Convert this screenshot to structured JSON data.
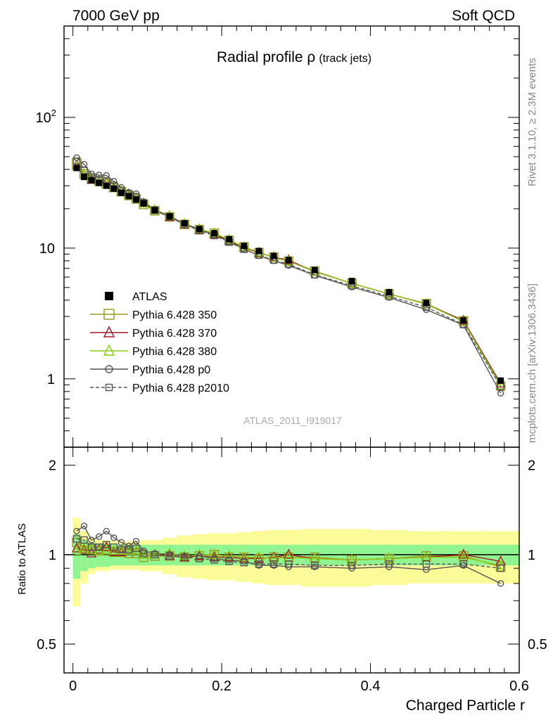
{
  "header": {
    "left": "7000 GeV pp",
    "right": "Soft QCD"
  },
  "side_labels": {
    "top": "Rivet 3.1.10, ≥ 2.3M events",
    "bottom": "mcplots.cern.ch [arXiv:1306.3436]"
  },
  "analysis_id": "ATLAS_2011_I919017",
  "chart_data": {
    "type": "line",
    "title": "Radial profile ρ",
    "title_suffix": "(track jets)",
    "xlabel": "Charged Particle r",
    "ylabel_ratio": "Ratio to ATLAS",
    "xlim": [
      -0.012,
      0.6
    ],
    "ylim_main": [
      0.3,
      500
    ],
    "ylim_ratio": [
      0.4,
      2.3
    ],
    "y_scale_main": "log",
    "y_scale_ratio": "log",
    "x_ticks": [
      "0",
      "0.2",
      "0.4",
      "0.6"
    ],
    "y_ticks_main": [
      "1",
      "10",
      "10²"
    ],
    "y_ticks_ratio": [
      "0.5",
      "1",
      "2"
    ],
    "legend_position": "middle-left",
    "x": [
      0.005,
      0.015,
      0.025,
      0.035,
      0.045,
      0.055,
      0.065,
      0.075,
      0.085,
      0.095,
      0.11,
      0.13,
      0.15,
      0.17,
      0.19,
      0.21,
      0.23,
      0.25,
      0.27,
      0.29,
      0.325,
      0.375,
      0.425,
      0.475,
      0.525,
      0.575
    ],
    "data": {
      "name": "ATLAS",
      "values": [
        41,
        35,
        33,
        31.5,
        30,
        28.5,
        26.5,
        25,
        23.5,
        22,
        19.5,
        17.5,
        15.5,
        14,
        13,
        11.7,
        10.4,
        9.5,
        8.7,
        8.1,
        6.8,
        5.6,
        4.6,
        3.8,
        2.8,
        0.97
      ],
      "band_inner": [
        0.17,
        0.12,
        0.1,
        0.09,
        0.09,
        0.08,
        0.08,
        0.08,
        0.08,
        0.08,
        0.08,
        0.08,
        0.08,
        0.08,
        0.08,
        0.08,
        0.08,
        0.08,
        0.08,
        0.08,
        0.08,
        0.08,
        0.08,
        0.08,
        0.08,
        0.08
      ],
      "band_outer": [
        0.33,
        0.2,
        0.14,
        0.12,
        0.12,
        0.11,
        0.11,
        0.11,
        0.11,
        0.12,
        0.12,
        0.14,
        0.16,
        0.17,
        0.18,
        0.18,
        0.19,
        0.2,
        0.21,
        0.21,
        0.22,
        0.22,
        0.21,
        0.2,
        0.2,
        0.2
      ]
    },
    "series": [
      {
        "name": "Pythia 6.428 350",
        "color": "#9a9a1e",
        "marker": "square-open",
        "dash": "solid",
        "ratio": [
          1.1,
          1.06,
          1.04,
          1.03,
          1.03,
          1.02,
          1.02,
          1.01,
          1.01,
          0.98,
          0.99,
          0.99,
          0.98,
          0.99,
          1.0,
          0.98,
          0.98,
          0.97,
          0.98,
          0.98,
          0.98,
          0.96,
          0.97,
          0.99,
          0.99,
          0.91
        ]
      },
      {
        "name": "Pythia 6.428 370",
        "color": "#a31a2a",
        "marker": "triangle-open",
        "dash": "solid",
        "ratio": [
          1.05,
          1.04,
          1.01,
          1.04,
          1.06,
          1.02,
          1.02,
          1.03,
          1.03,
          1.0,
          1.0,
          0.99,
          0.98,
          0.99,
          0.98,
          0.98,
          0.97,
          0.97,
          0.98,
          1.0,
          0.97,
          0.96,
          0.97,
          0.98,
          1.0,
          0.95
        ]
      },
      {
        "name": "Pythia 6.428 380",
        "color": "#88cc11",
        "marker": "triangle-open",
        "dash": "solid",
        "ratio": [
          1.03,
          1.05,
          1.04,
          1.03,
          1.04,
          1.03,
          1.03,
          1.03,
          1.03,
          1.0,
          1.0,
          1.01,
          0.99,
          1.0,
          1.0,
          0.99,
          0.98,
          0.98,
          0.97,
          0.98,
          0.97,
          0.96,
          0.97,
          0.98,
          0.98,
          0.92
        ]
      },
      {
        "name": "Pythia 6.428 p0",
        "color": "#555555",
        "marker": "circle-open",
        "dash": "solid",
        "ratio": [
          1.2,
          1.25,
          1.12,
          1.15,
          1.2,
          1.14,
          1.1,
          1.07,
          1.11,
          1.03,
          1.01,
          1.0,
          0.99,
          0.99,
          0.97,
          0.96,
          0.95,
          0.92,
          0.92,
          0.91,
          0.91,
          0.9,
          0.91,
          0.89,
          0.92,
          0.8
        ]
      },
      {
        "name": "Pythia 6.428 p2010",
        "color": "#555555",
        "marker": "square-open",
        "dash": "dashed",
        "ratio": [
          1.13,
          1.12,
          1.06,
          1.06,
          1.08,
          1.06,
          1.04,
          1.04,
          1.05,
          1.01,
          1.0,
          0.99,
          0.98,
          0.97,
          0.96,
          0.95,
          0.94,
          0.93,
          0.93,
          0.93,
          0.92,
          0.92,
          0.93,
          0.93,
          0.93,
          0.9
        ]
      }
    ]
  }
}
